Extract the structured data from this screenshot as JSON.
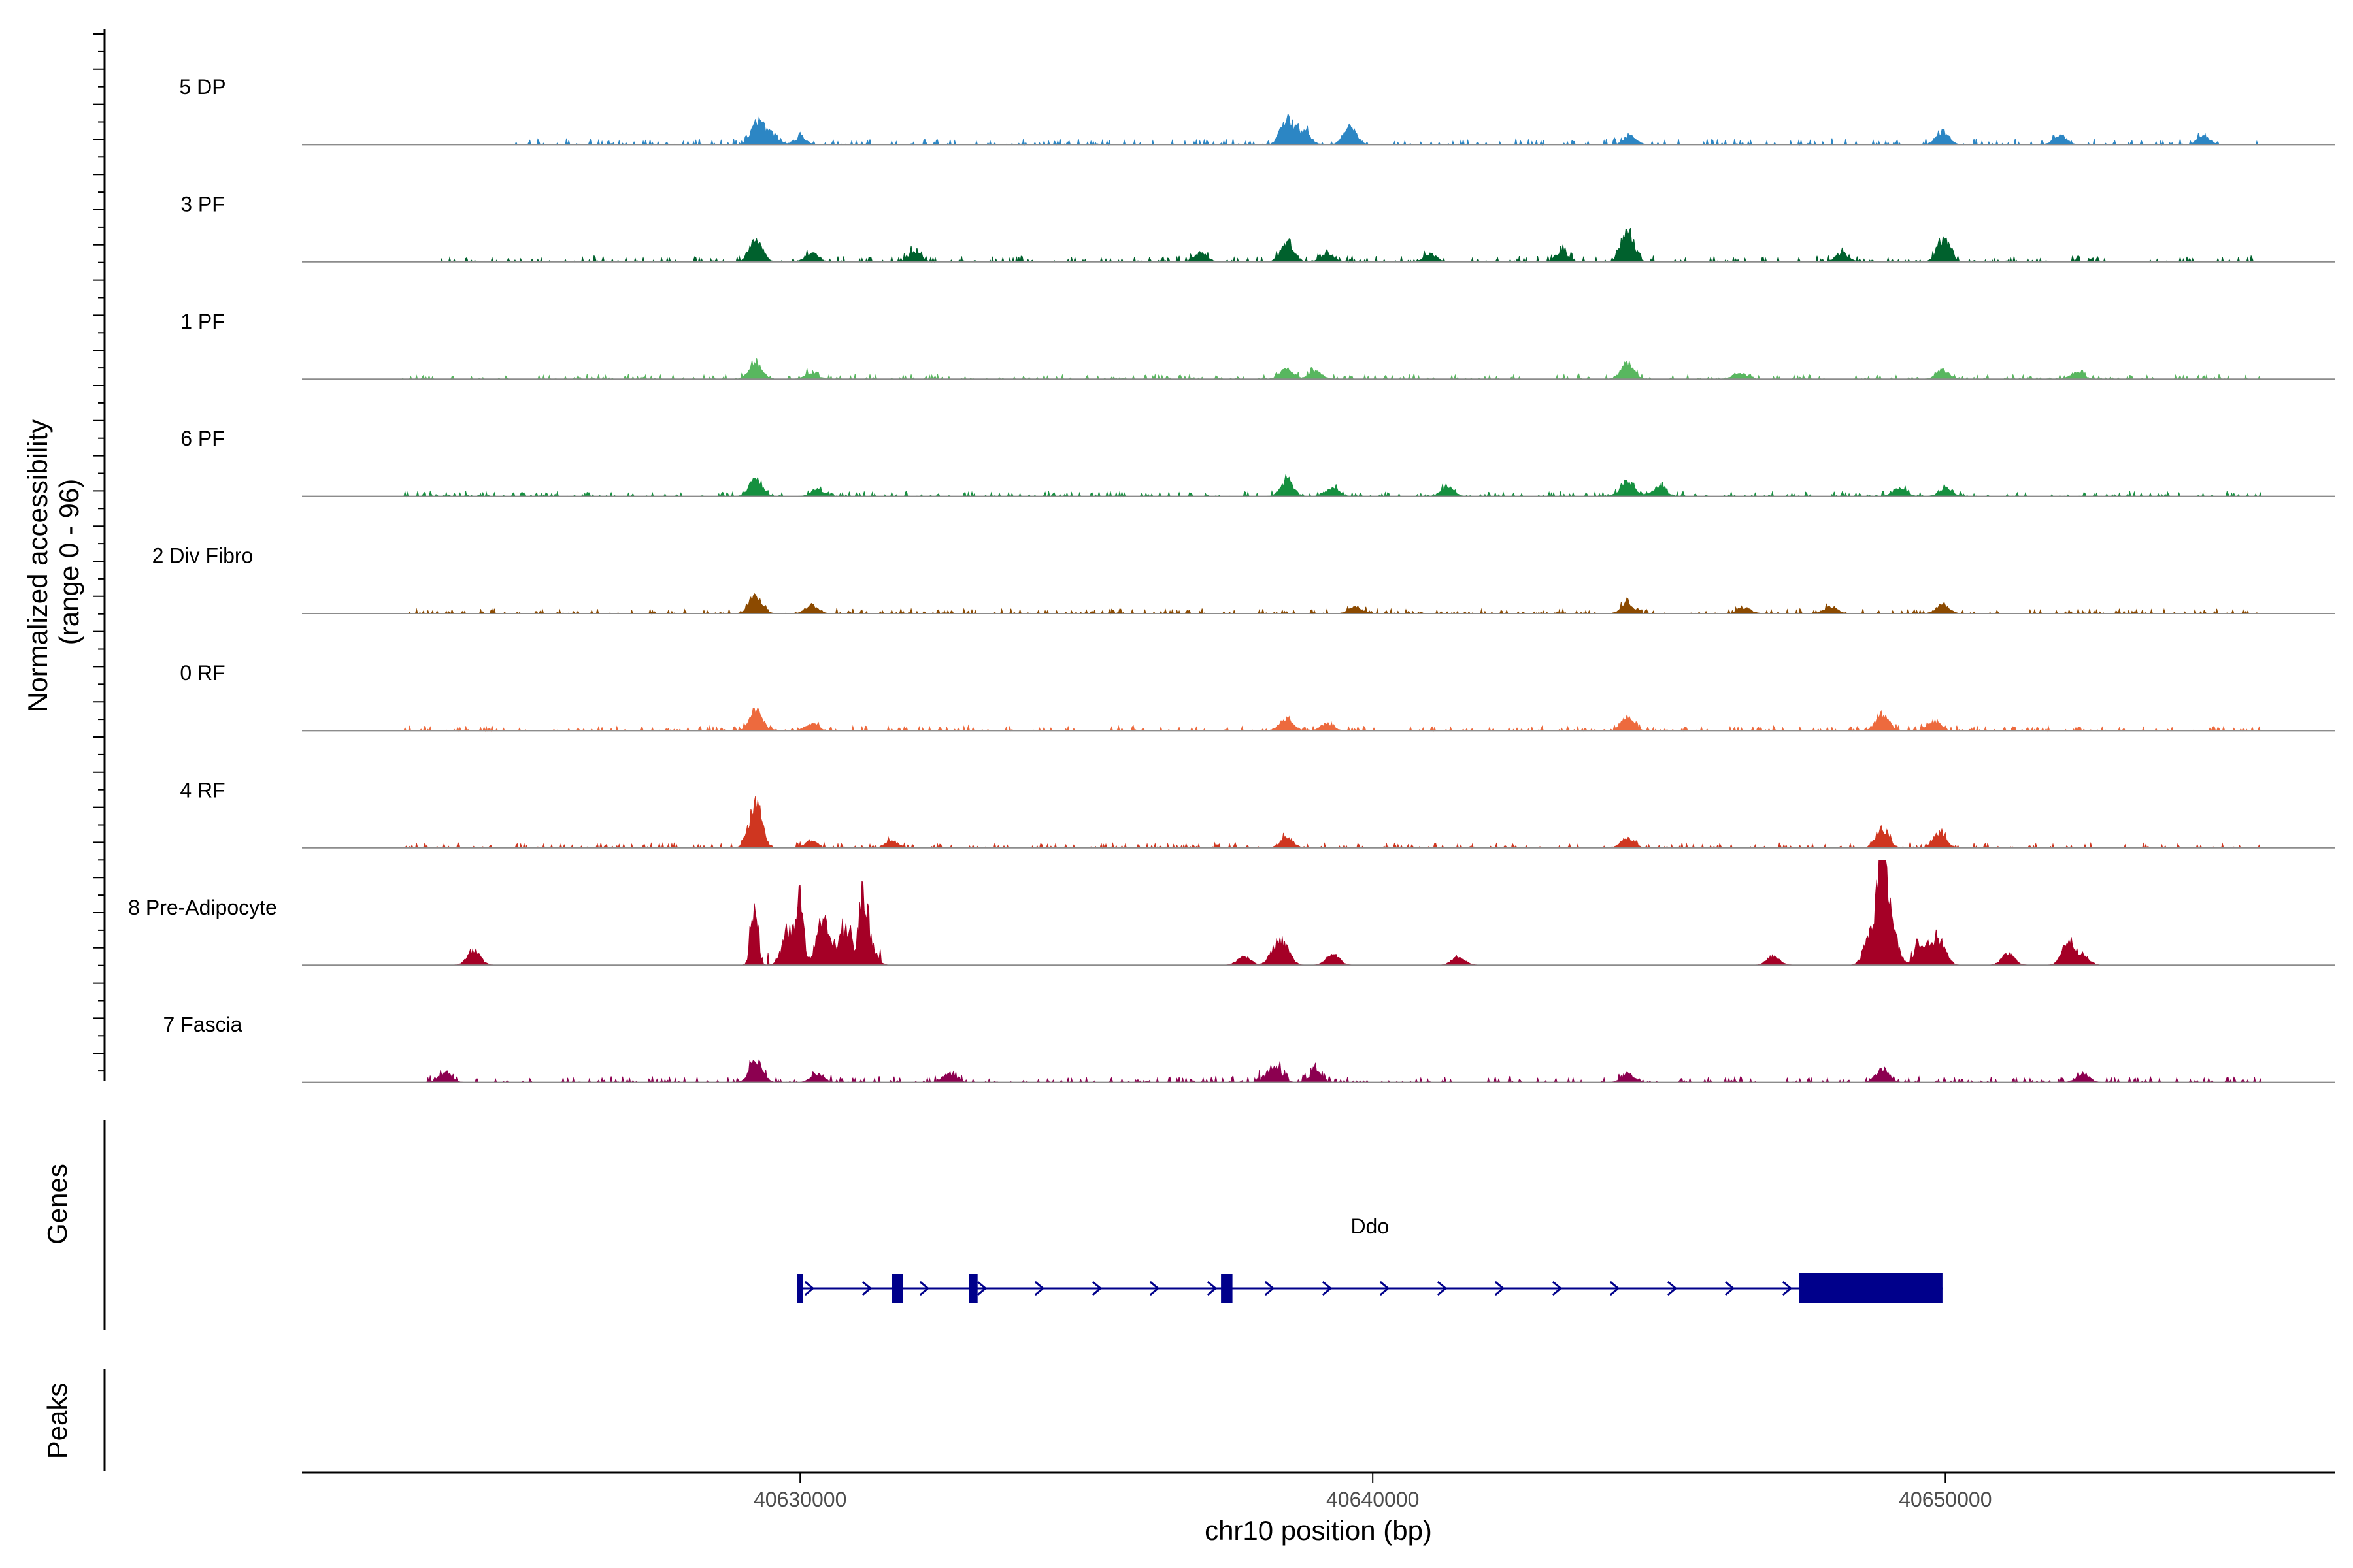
{
  "chart_data": {
    "type": "area",
    "ylabel_line1": "Normalized accessibility",
    "ylabel_line2": "(range 0 - 96)",
    "ylim": [
      0,
      96
    ],
    "xlabel": "chr10 position (bp)",
    "xlim": [
      40621300,
      40656800
    ],
    "xticks": [
      40630000,
      40640000,
      40650000
    ],
    "xtick_labels": [
      "40630000",
      "40640000",
      "40650000"
    ],
    "series": [
      {
        "name": "5 DP",
        "color": "#2c86c4",
        "peaks": [
          [
            40629260,
            20
          ],
          [
            40629500,
            9
          ],
          [
            40630000,
            6
          ],
          [
            40638500,
            22
          ],
          [
            40638800,
            12
          ],
          [
            40639600,
            16
          ],
          [
            40644500,
            8
          ],
          [
            40649950,
            12
          ],
          [
            40652000,
            9
          ],
          [
            40654500,
            7
          ]
        ],
        "noise": [
          [
            40624900,
            40655500,
            5
          ]
        ]
      },
      {
        "name": "3 PF",
        "color": "#00612d",
        "peaks": [
          [
            40629230,
            22
          ],
          [
            40630200,
            8
          ],
          [
            40632000,
            9
          ],
          [
            40637000,
            8
          ],
          [
            40638500,
            17
          ],
          [
            40639200,
            8
          ],
          [
            40641000,
            7
          ],
          [
            40643300,
            9
          ],
          [
            40644450,
            28
          ],
          [
            40648200,
            8
          ],
          [
            40649970,
            21
          ]
        ],
        "noise": [
          [
            40623500,
            40655500,
            5
          ]
        ]
      },
      {
        "name": "1 PF",
        "color": "#58b75f",
        "peaks": [
          [
            40629220,
            14
          ],
          [
            40630200,
            5
          ],
          [
            40638500,
            10
          ],
          [
            40639000,
            7
          ],
          [
            40644450,
            14
          ],
          [
            40646400,
            6
          ],
          [
            40649950,
            8
          ],
          [
            40652300,
            6
          ]
        ],
        "noise": [
          [
            40623000,
            40655500,
            4
          ]
        ]
      },
      {
        "name": "6 PF",
        "color": "#15903f",
        "peaks": [
          [
            40629230,
            16
          ],
          [
            40630300,
            6
          ],
          [
            40638500,
            14
          ],
          [
            40639300,
            7
          ],
          [
            40641300,
            8
          ],
          [
            40644450,
            14
          ],
          [
            40645000,
            8
          ],
          [
            40649200,
            8
          ],
          [
            40650000,
            7
          ]
        ],
        "noise": [
          [
            40623000,
            40655500,
            4
          ]
        ]
      },
      {
        "name": "2 Div Fibro",
        "color": "#8c4a00",
        "peaks": [
          [
            40629220,
            16
          ],
          [
            40630200,
            7
          ],
          [
            40639700,
            6
          ],
          [
            40644450,
            8
          ],
          [
            40646500,
            5
          ],
          [
            40648000,
            6
          ],
          [
            40649950,
            8
          ]
        ],
        "noise": [
          [
            40623000,
            40655500,
            4
          ]
        ]
      },
      {
        "name": "0 RF",
        "color": "#ed6a3e",
        "peaks": [
          [
            40629230,
            18
          ],
          [
            40630200,
            6
          ],
          [
            40638500,
            12
          ],
          [
            40639200,
            6
          ],
          [
            40644450,
            12
          ],
          [
            40648900,
            15
          ],
          [
            40649800,
            8
          ]
        ],
        "noise": [
          [
            40623000,
            40655500,
            4
          ]
        ]
      },
      {
        "name": "4 RF",
        "color": "#cf3620",
        "peaks": [
          [
            40629220,
            40
          ],
          [
            40630200,
            6
          ],
          [
            40631600,
            6
          ],
          [
            40638500,
            9
          ],
          [
            40644450,
            9
          ],
          [
            40648900,
            17
          ],
          [
            40649900,
            14
          ]
        ],
        "noise": [
          [
            40623000,
            40655500,
            4
          ]
        ]
      },
      {
        "name": "8 Pre-Adipocyte",
        "color": "#a50026",
        "peaks": [
          [
            40624300,
            14
          ],
          [
            40629200,
            50
          ],
          [
            40629800,
            30
          ],
          [
            40630000,
            55
          ],
          [
            40630400,
            40
          ],
          [
            40630800,
            32
          ],
          [
            40631100,
            45
          ],
          [
            40631200,
            22
          ],
          [
            40637750,
            8
          ],
          [
            40638300,
            12
          ],
          [
            40638450,
            16
          ],
          [
            40639300,
            10
          ],
          [
            40641500,
            8
          ],
          [
            40647000,
            8
          ],
          [
            40648700,
            28
          ],
          [
            40648850,
            50
          ],
          [
            40648920,
            88
          ],
          [
            40649050,
            38
          ],
          [
            40649600,
            18
          ],
          [
            40649900,
            22
          ],
          [
            40651100,
            10
          ],
          [
            40652150,
            22
          ],
          [
            40652400,
            8
          ]
        ],
        "noise": [
          [
            40629100,
            40631400,
            12
          ],
          [
            40648500,
            40649950,
            8
          ]
        ]
      },
      {
        "name": "7 Fascia",
        "color": "#8c0050",
        "peaks": [
          [
            40623800,
            8
          ],
          [
            40629230,
            20
          ],
          [
            40630300,
            7
          ],
          [
            40632600,
            8
          ],
          [
            40638300,
            14
          ],
          [
            40639000,
            9
          ],
          [
            40644450,
            8
          ],
          [
            40648900,
            12
          ],
          [
            40652400,
            8
          ]
        ],
        "noise": [
          [
            40623500,
            40655500,
            5
          ],
          [
            40637000,
            40640000,
            6
          ]
        ]
      }
    ],
    "genes": {
      "title": "Genes",
      "items": [
        {
          "name": "Ddo",
          "start": 40629950,
          "end": 40649950,
          "strand": "+",
          "exons": [
            [
              40629950,
              40630050
            ],
            [
              40631600,
              40631800
            ],
            [
              40632950,
              40633100
            ],
            [
              40637350,
              40637550
            ],
            [
              40647450,
              40649950
            ]
          ]
        }
      ]
    },
    "peaks_track": {
      "title": "Peaks",
      "items": []
    }
  }
}
